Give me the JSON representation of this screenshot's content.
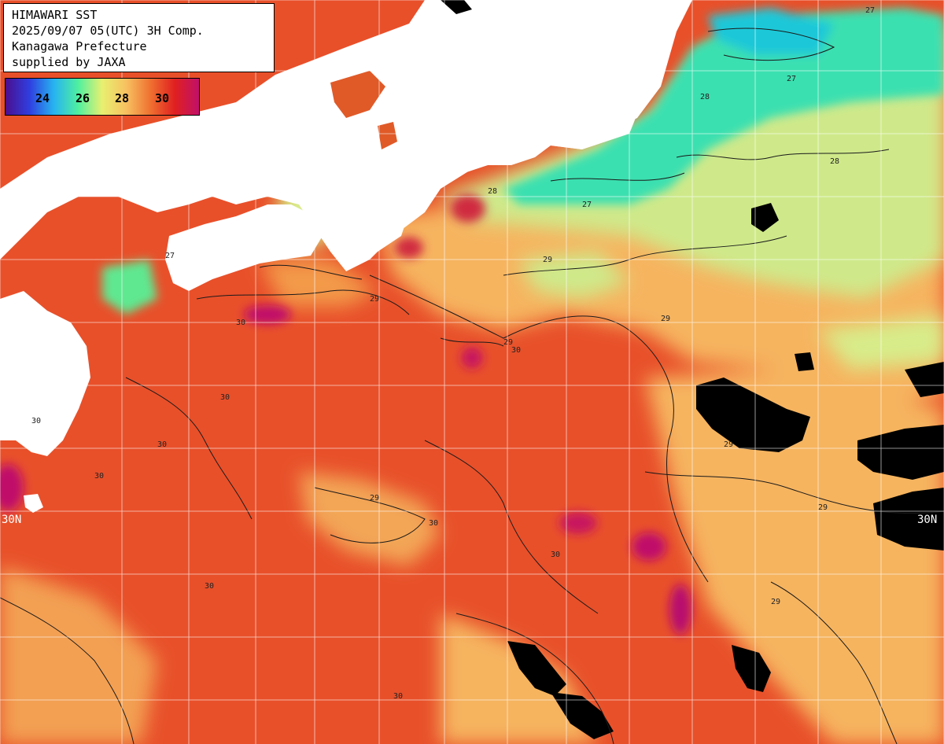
{
  "header": {
    "title": "HIMAWARI SST",
    "datetime": "2025/09/07 05(UTC) 3H Comp.",
    "region": "Kanagawa Prefecture",
    "credit": "supplied by JAXA"
  },
  "colorbar": {
    "ticks": [
      "24",
      "26",
      "28",
      "30"
    ],
    "stops": [
      "#4b0f8f",
      "#2f3fe0",
      "#27b3f0",
      "#4ff0a0",
      "#e8f070",
      "#f7c060",
      "#ef7030",
      "#e02020",
      "#c0106a"
    ]
  },
  "latitude_labels": {
    "left": "30N",
    "right": "30N"
  },
  "contour_labels": [
    "27",
    "28",
    "29",
    "30"
  ],
  "colors": {
    "land": "#ffffff",
    "cloud": "#000000",
    "warm_sea": "#e8502a",
    "hot_sea": "#d0105a",
    "mild_sea": "#f6b45e",
    "cool_sea": "#cfe98a",
    "cold_sea": "#3be0b0",
    "grid": "#ffffff"
  }
}
